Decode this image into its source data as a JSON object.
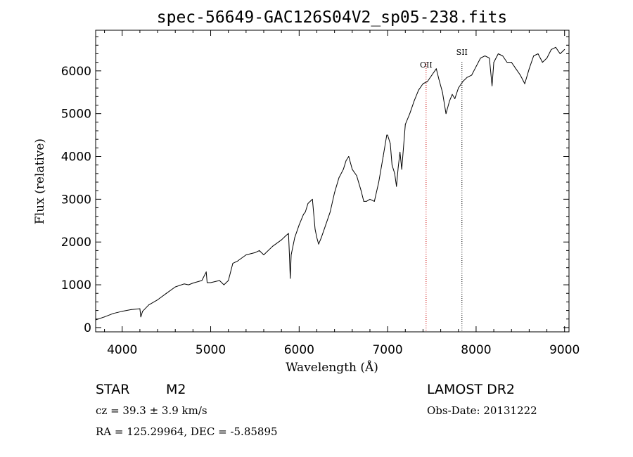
{
  "chart_data": {
    "type": "line",
    "title": "spec-56649-GAC126S04V2_sp05-238.fits",
    "xlabel": "Wavelength (Å)",
    "ylabel": "Flux (relative)",
    "xlim": [
      3700,
      9050
    ],
    "ylim": [
      -100,
      6950
    ],
    "xticks": [
      4000,
      5000,
      6000,
      7000,
      8000,
      9000
    ],
    "yticks": [
      0,
      1000,
      2000,
      3000,
      4000,
      5000,
      6000
    ],
    "grid": false,
    "series": [
      {
        "color": "#000000",
        "x": [
          3700,
          3800,
          3900,
          4000,
          4100,
          4200,
          4210,
          4230,
          4300,
          4400,
          4500,
          4600,
          4700,
          4750,
          4800,
          4900,
          4950,
          4960,
          5000,
          5100,
          5150,
          5200,
          5250,
          5300,
          5400,
          5500,
          5550,
          5600,
          5700,
          5800,
          5850,
          5880,
          5890,
          5900,
          5910,
          5950,
          6000,
          6050,
          6070,
          6100,
          6150,
          6180,
          6200,
          6220,
          6250,
          6300,
          6350,
          6400,
          6450,
          6500,
          6530,
          6560,
          6600,
          6650,
          6700,
          6730,
          6760,
          6800,
          6850,
          6900,
          6950,
          6990,
          7000,
          7030,
          7050,
          7080,
          7100,
          7120,
          7140,
          7160,
          7200,
          7250,
          7300,
          7350,
          7400,
          7450,
          7500,
          7550,
          7580,
          7620,
          7660,
          7700,
          7730,
          7760,
          7800,
          7850,
          7900,
          7950,
          8000,
          8050,
          8100,
          8150,
          8180,
          8200,
          8250,
          8300,
          8350,
          8400,
          8450,
          8500,
          8550,
          8600,
          8650,
          8700,
          8750,
          8800,
          8850,
          8900,
          8950,
          9000
        ],
        "y": [
          180,
          250,
          330,
          380,
          420,
          440,
          250,
          380,
          530,
          650,
          800,
          950,
          1020,
          1000,
          1040,
          1100,
          1300,
          1050,
          1050,
          1100,
          1000,
          1100,
          1500,
          1550,
          1700,
          1750,
          1800,
          1700,
          1900,
          2050,
          2150,
          2200,
          1700,
          1150,
          1700,
          2100,
          2400,
          2650,
          2700,
          2900,
          3000,
          2300,
          2100,
          1950,
          2100,
          2400,
          2700,
          3150,
          3500,
          3700,
          3900,
          4000,
          3700,
          3550,
          3200,
          2950,
          2950,
          3000,
          2950,
          3400,
          4000,
          4500,
          4500,
          4300,
          3800,
          3600,
          3300,
          3750,
          4100,
          3700,
          4750,
          5000,
          5300,
          5550,
          5700,
          5750,
          5900,
          6050,
          5800,
          5500,
          5000,
          5300,
          5450,
          5350,
          5600,
          5750,
          5850,
          5900,
          6100,
          6300,
          6350,
          6300,
          5650,
          6200,
          6400,
          6350,
          6200,
          6200,
          6050,
          5900,
          5700,
          6050,
          6350,
          6400,
          6200,
          6300,
          6500,
          6550,
          6400,
          6500
        ]
      }
    ],
    "markers": [
      {
        "label": "OII",
        "x": 7435,
        "color": "#cc0000"
      },
      {
        "label": "SII",
        "x": 7840,
        "color": "#000000"
      }
    ]
  },
  "info": {
    "object_class": "STAR",
    "subclass": "M2",
    "survey": "LAMOST DR2",
    "cz": "cz = 39.3 ± 3.9 km/s",
    "obs_date": "Obs-Date: 20131222",
    "coords": "RA = 125.29964, DEC =  -5.85895"
  }
}
